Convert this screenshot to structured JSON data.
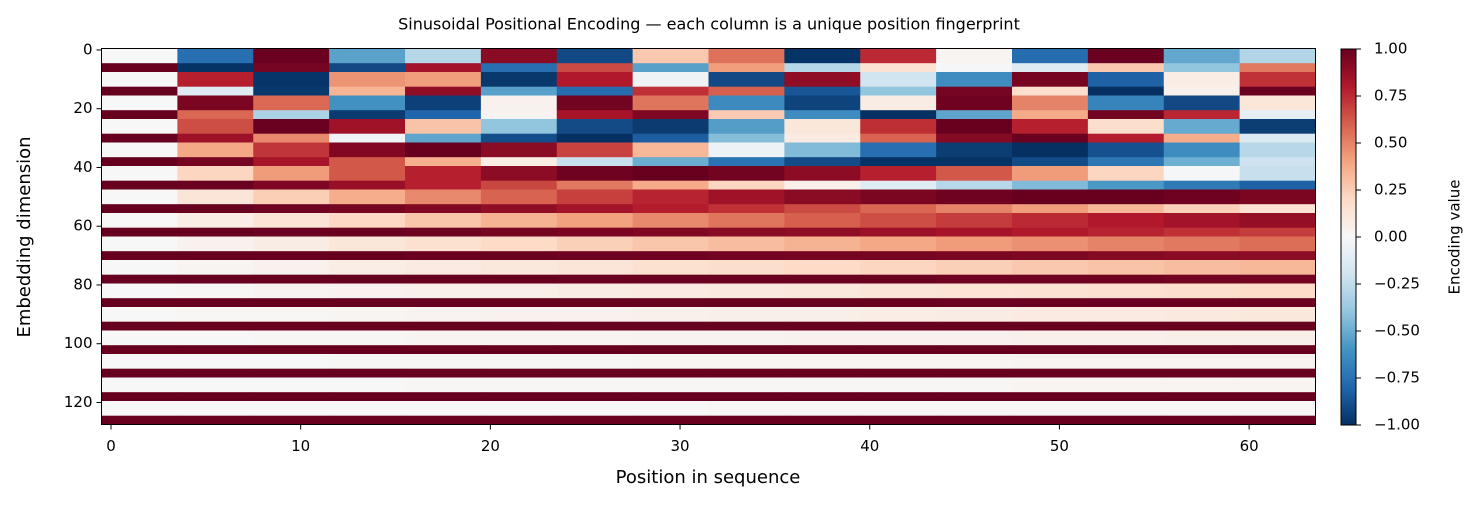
{
  "chart_data": {
    "type": "heatmap",
    "title": "Sinusoidal Positional Encoding  —  each column is a unique position fingerprint",
    "x_label": "Position in sequence",
    "y_label": "Embedding dimension",
    "x": [
      0,
      4,
      8,
      12,
      16,
      20,
      24,
      28,
      32,
      36,
      40,
      44,
      48,
      52,
      56,
      60
    ],
    "y": [
      0,
      5,
      8,
      13,
      16,
      21,
      24,
      29,
      32,
      37,
      40,
      45,
      48,
      53,
      56,
      61,
      64,
      69,
      72,
      77,
      80,
      85,
      88,
      93,
      96,
      101,
      104,
      109,
      112,
      117,
      120,
      125
    ],
    "values": [
      [
        0,
        -0.76,
        0.99,
        -0.54,
        -0.29,
        0.91,
        -0.91,
        0.27,
        0.55,
        -0.99,
        0.75,
        0.02,
        -0.77,
        0.99,
        -0.52,
        -0.3
      ],
      [
        1,
        -0.99,
        0.96,
        -0.91,
        0.84,
        -0.76,
        0.66,
        -0.55,
        0.42,
        -0.29,
        0.15,
        -0.01,
        -0.13,
        0.27,
        -0.4,
        0.53
      ],
      [
        0,
        0.78,
        -0.98,
        0.45,
        0.42,
        -0.97,
        0.8,
        -0.04,
        -0.91,
        0.89,
        -0.2,
        -0.63,
        0.96,
        -0.82,
        0.07,
        0.73
      ],
      [
        1,
        -0.12,
        -0.97,
        0.34,
        0.89,
        -0.55,
        -0.77,
        0.73,
        0.6,
        -0.86,
        -0.4,
        0.96,
        0.18,
        -1,
        0.05,
        0.99
      ],
      [
        0,
        0.95,
        0.57,
        -0.61,
        -0.94,
        0.04,
        0.97,
        0.54,
        -0.64,
        -0.93,
        0.08,
        0.98,
        0.5,
        -0.67,
        -0.91,
        0.12
      ],
      [
        1,
        0.58,
        -0.32,
        -0.96,
        -0.8,
        0.03,
        0.83,
        0.94,
        0.26,
        -0.63,
        -1,
        -0.53,
        0.38,
        0.97,
        0.76,
        -0.09
      ],
      [
        0,
        0.65,
        0.99,
        0.85,
        0.29,
        -0.4,
        -0.9,
        -0.96,
        -0.56,
        0.12,
        0.74,
        1,
        0.78,
        0.18,
        -0.51,
        -0.95
      ],
      [
        1,
        0.86,
        0.48,
        -0.03,
        -0.53,
        -0.89,
        -1,
        -0.83,
        -0.43,
        0.09,
        0.59,
        0.92,
        0.99,
        0.79,
        0.37,
        -0.15
      ],
      [
        0,
        0.39,
        0.72,
        0.93,
        1,
        0.91,
        0.68,
        0.33,
        -0.06,
        -0.44,
        -0.76,
        -0.95,
        -1,
        -0.88,
        -0.63,
        -0.28
      ],
      [
        1,
        0.96,
        0.83,
        0.62,
        0.36,
        0.07,
        -0.23,
        -0.5,
        -0.74,
        -0.9,
        -0.99,
        -0.99,
        -0.9,
        -0.73,
        -0.49,
        -0.21
      ],
      [
        0,
        0.22,
        0.43,
        0.62,
        0.78,
        0.9,
        0.98,
        1,
        0.97,
        0.9,
        0.78,
        0.62,
        0.43,
        0.22,
        -0.01,
        -0.23
      ],
      [
        1,
        0.99,
        0.94,
        0.87,
        0.78,
        0.67,
        0.53,
        0.38,
        0.22,
        0.05,
        -0.12,
        -0.28,
        -0.44,
        -0.58,
        -0.71,
        -0.82
      ],
      [
        0,
        0.13,
        0.25,
        0.37,
        0.48,
        0.59,
        0.69,
        0.77,
        0.85,
        0.91,
        0.95,
        0.98,
        1,
        1,
        0.98,
        0.95
      ],
      [
        1,
        1,
        0.98,
        0.96,
        0.93,
        0.89,
        0.84,
        0.79,
        0.73,
        0.66,
        0.58,
        0.5,
        0.42,
        0.33,
        0.24,
        0.15
      ],
      [
        0,
        0.07,
        0.14,
        0.21,
        0.28,
        0.35,
        0.41,
        0.48,
        0.54,
        0.6,
        0.65,
        0.7,
        0.75,
        0.8,
        0.84,
        0.88
      ],
      [
        1,
        1,
        0.99,
        0.99,
        0.98,
        0.96,
        0.95,
        0.93,
        0.91,
        0.89,
        0.86,
        0.83,
        0.8,
        0.77,
        0.73,
        0.7
      ],
      [
        0,
        0.04,
        0.08,
        0.12,
        0.16,
        0.2,
        0.24,
        0.28,
        0.31,
        0.35,
        0.39,
        0.43,
        0.46,
        0.5,
        0.53,
        0.56
      ],
      [
        1,
        1,
        1,
        1,
        0.99,
        0.99,
        0.98,
        0.98,
        0.97,
        0.96,
        0.96,
        0.95,
        0.94,
        0.92,
        0.91,
        0.9
      ],
      [
        0,
        0.02,
        0.04,
        0.07,
        0.09,
        0.11,
        0.13,
        0.16,
        0.18,
        0.2,
        0.22,
        0.24,
        0.27,
        0.29,
        0.31,
        0.33
      ],
      [
        1,
        1,
        1,
        1,
        1,
        1,
        0.99,
        0.99,
        0.99,
        0.99,
        0.99,
        0.98,
        0.98,
        0.98,
        0.97,
        0.97
      ],
      [
        0,
        0.01,
        0.03,
        0.04,
        0.05,
        0.06,
        0.08,
        0.09,
        0.1,
        0.11,
        0.13,
        0.14,
        0.15,
        0.16,
        0.18,
        0.19
      ],
      [
        1,
        1,
        1,
        1,
        1,
        1,
        1,
        1,
        1,
        1,
        1,
        0.99,
        0.99,
        0.99,
        0.99,
        0.99
      ],
      [
        0,
        0.01,
        0.01,
        0.02,
        0.03,
        0.04,
        0.04,
        0.05,
        0.06,
        0.06,
        0.07,
        0.08,
        0.09,
        0.09,
        0.1,
        0.11
      ],
      [
        1,
        1,
        1,
        1,
        1,
        1,
        1,
        1,
        1,
        1,
        1,
        1,
        1,
        1,
        1,
        1
      ],
      [
        0,
        0,
        0.01,
        0.01,
        0.02,
        0.02,
        0.02,
        0.03,
        0.03,
        0.04,
        0.04,
        0.04,
        0.05,
        0.05,
        0.06,
        0.06
      ],
      [
        1,
        1,
        1,
        1,
        1,
        1,
        1,
        1,
        1,
        1,
        1,
        1,
        1,
        1,
        1,
        1
      ],
      [
        0,
        0,
        0,
        0.01,
        0.01,
        0.01,
        0.01,
        0.02,
        0.02,
        0.02,
        0.02,
        0.02,
        0.03,
        0.03,
        0.03,
        0.03
      ],
      [
        1,
        1,
        1,
        1,
        1,
        1,
        1,
        1,
        1,
        1,
        1,
        1,
        1,
        1,
        1,
        1
      ],
      [
        0,
        0,
        0,
        0,
        0.01,
        0.01,
        0.01,
        0.01,
        0.01,
        0.01,
        0.01,
        0.01,
        0.02,
        0.02,
        0.02,
        0.02
      ],
      [
        1,
        1,
        1,
        1,
        1,
        1,
        1,
        1,
        1,
        1,
        1,
        1,
        1,
        1,
        1,
        1
      ],
      [
        0,
        0,
        0,
        0,
        0,
        0,
        0,
        0,
        0.01,
        0.01,
        0.01,
        0.01,
        0.01,
        0.01,
        0.01,
        0.01
      ],
      [
        1,
        1,
        1,
        1,
        1,
        1,
        1,
        1,
        1,
        1,
        1,
        1,
        1,
        1,
        1,
        1
      ]
    ],
    "xlim": [
      -0.5,
      63.5
    ],
    "ylim": [
      127.5,
      -0.5
    ],
    "xticks": [
      0,
      10,
      20,
      30,
      40,
      50,
      60
    ],
    "yticks": [
      0,
      20,
      40,
      60,
      80,
      100,
      120
    ],
    "colorscale": [
      "#053061",
      "#2166ac",
      "#4393c3",
      "#92c5de",
      "#d1e5f0",
      "#f7f7f7",
      "#fddbc7",
      "#f4a582",
      "#d6604d",
      "#b2182b",
      "#67001f"
    ],
    "colorbar": {
      "label": "Encoding value",
      "lim": [
        -1,
        1
      ],
      "ticks": [
        {
          "value": 1,
          "label": "1.00"
        },
        {
          "value": 0.75,
          "label": "0.75"
        },
        {
          "value": 0.5,
          "label": "0.50"
        },
        {
          "value": 0.25,
          "label": "0.25"
        },
        {
          "value": 0,
          "label": "0.00"
        },
        {
          "value": -0.25,
          "label": "−0.25"
        },
        {
          "value": -0.5,
          "label": "−0.50"
        },
        {
          "value": -0.75,
          "label": "−0.75"
        },
        {
          "value": -1,
          "label": "−1.00"
        }
      ]
    }
  }
}
